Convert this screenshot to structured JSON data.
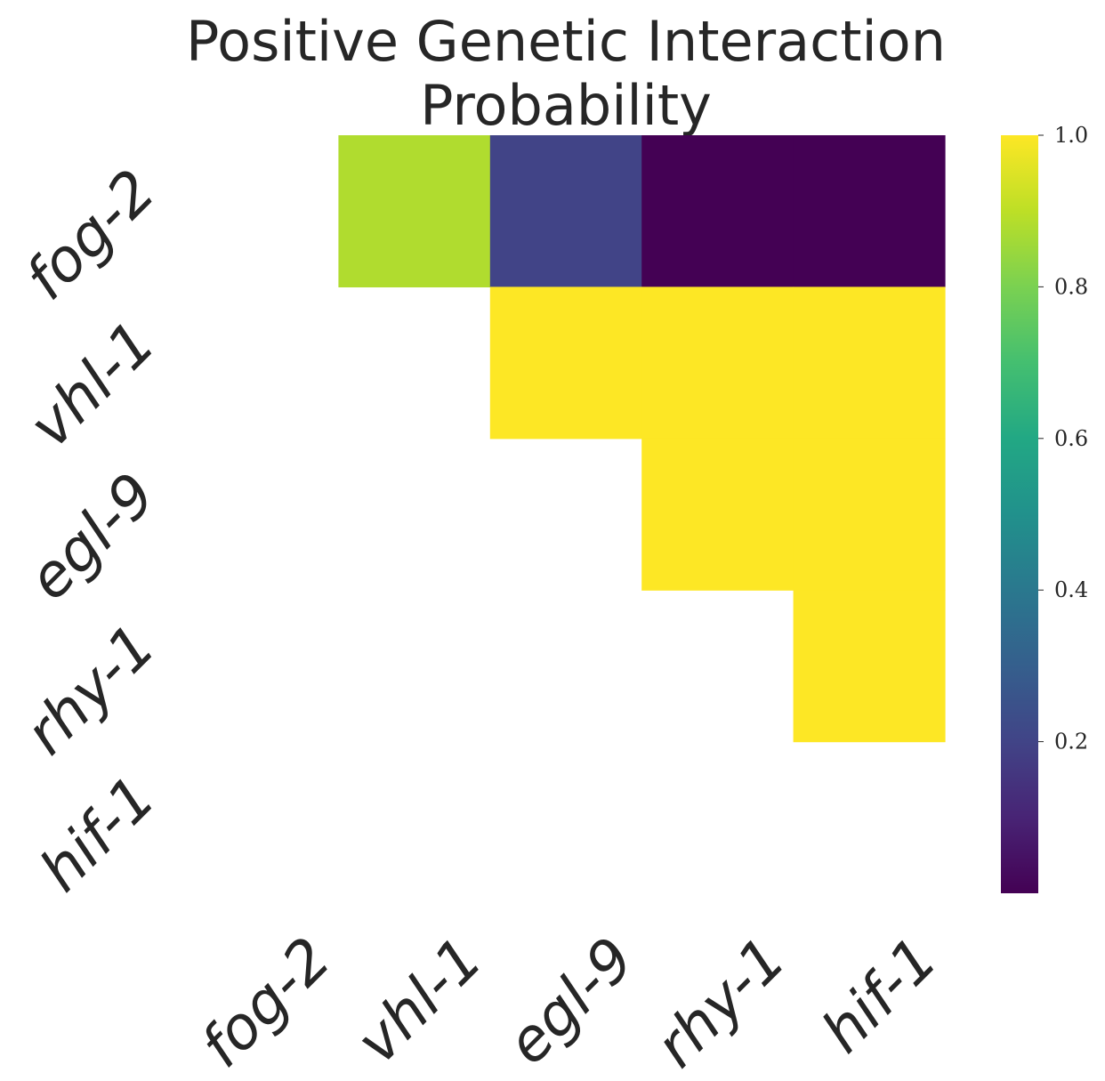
{
  "chart_data": {
    "type": "heatmap",
    "title_lines": [
      "Positive Genetic Interaction",
      "Probability"
    ],
    "row_labels": [
      "fog-2",
      "vhl-1",
      "egl-9",
      "rhy-1",
      "hif-1"
    ],
    "col_labels": [
      "fog-2",
      "vhl-1",
      "egl-9",
      "rhy-1",
      "hif-1"
    ],
    "values": [
      [
        null,
        0.88,
        0.2,
        0.0,
        0.0
      ],
      [
        null,
        null,
        1.0,
        1.0,
        1.0
      ],
      [
        null,
        null,
        null,
        1.0,
        1.0
      ],
      [
        null,
        null,
        null,
        null,
        1.0
      ],
      [
        null,
        null,
        null,
        null,
        null
      ]
    ],
    "mask": "lower triangle including diagonal (blank)",
    "colormap": "viridis",
    "vmin": 0.0,
    "vmax": 1.0,
    "colorbar": {
      "position": "right",
      "ticks": [
        0.2,
        0.4,
        0.6,
        0.8,
        1.0
      ],
      "tick_labels": [
        "0.2",
        "0.4",
        "0.6",
        "0.8",
        "1.0"
      ]
    },
    "grid": false
  }
}
